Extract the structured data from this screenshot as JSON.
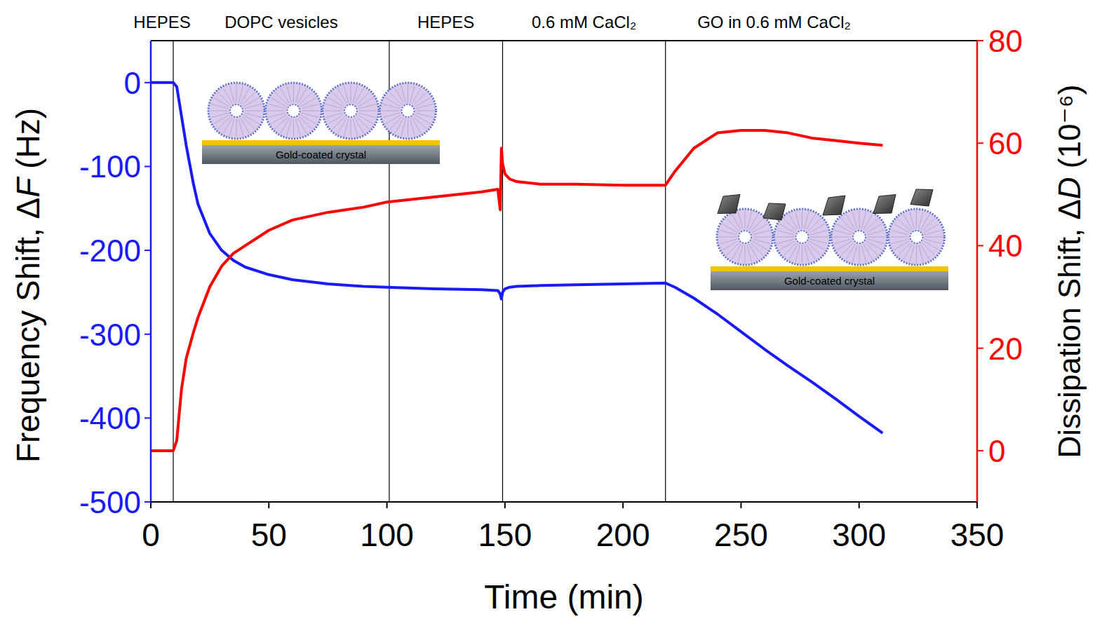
{
  "chart_data": {
    "type": "line",
    "x_label": "Time (min)",
    "y_label": "Frequency Shift, ΔF (Hz)",
    "y2_label": "Dissipation Shift, ΔD (10⁻⁶)",
    "xlim": [
      0,
      350
    ],
    "xticks": [
      0,
      50,
      100,
      150,
      200,
      250,
      300,
      350
    ],
    "ylim": [
      -500,
      50
    ],
    "yticks": [
      -500,
      -400,
      -300,
      -200,
      -100,
      0
    ],
    "y2lim": [
      -10,
      80
    ],
    "y2ticks": [
      0,
      20,
      40,
      60,
      80
    ],
    "x": [
      0,
      5,
      9.5,
      11,
      13,
      15,
      18,
      20,
      25,
      30,
      35,
      40,
      50,
      60,
      75,
      90,
      100,
      120,
      140,
      147,
      148,
      148.5,
      149,
      150,
      152,
      155,
      165,
      180,
      200,
      218,
      222,
      230,
      240,
      250,
      260,
      270,
      280,
      290,
      300,
      310
    ],
    "series": [
      {
        "color": "#1a1aff",
        "values": [
          0,
          0,
          0,
          -5,
          -40,
          -75,
          -120,
          -145,
          -180,
          -200,
          -212,
          -220,
          -229,
          -235,
          -240,
          -243,
          -244,
          -246,
          -247,
          -248,
          -252,
          -258,
          -250,
          -246,
          -244,
          -243,
          -242,
          -241,
          -240,
          -239,
          -244,
          -257,
          -276,
          -297,
          -318,
          -338,
          -357,
          -377,
          -398,
          -418
        ]
      },
      {
        "color": "#ff0000",
        "axis": "y2",
        "values": [
          0,
          0,
          0,
          2,
          12,
          18,
          23,
          26,
          32,
          36,
          38.5,
          40,
          43,
          45,
          46.5,
          47.5,
          48.5,
          49.5,
          50.5,
          51,
          47,
          59,
          56,
          54,
          53,
          52.5,
          52,
          52,
          51.8,
          51.8,
          54.5,
          59,
          62,
          62.5,
          62.5,
          62,
          61,
          60.5,
          60,
          59.6
        ]
      }
    ],
    "phases": {
      "labels": [
        "HEPES",
        "DOPC vesicles",
        "HEPES",
        "0.6 mM CaCl₂",
        "GO in 0.6 mM CaCl₂"
      ],
      "boundaries": [
        9.5,
        101,
        149,
        218
      ]
    },
    "inset_labels": [
      "Gold-coated crystal",
      "Gold-coated crystal"
    ]
  }
}
